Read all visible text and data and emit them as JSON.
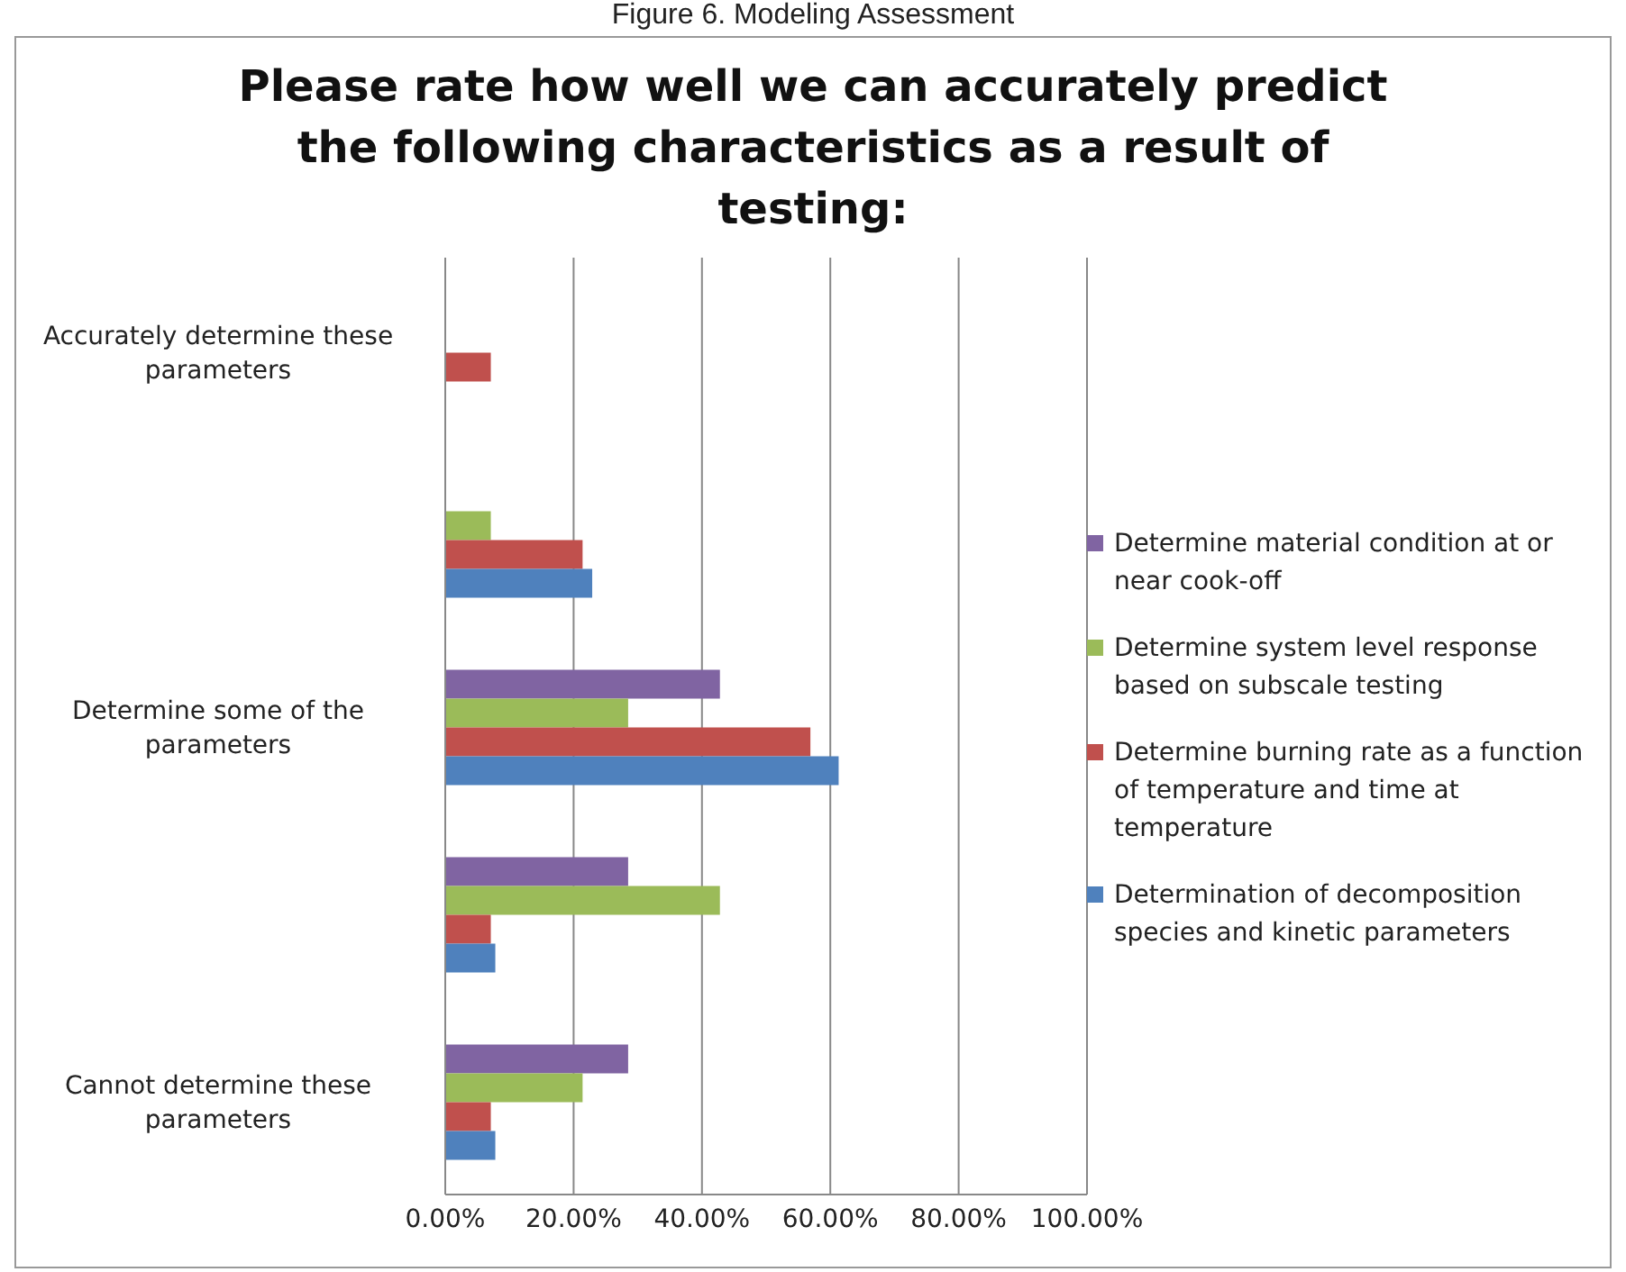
{
  "chart_data": {
    "type": "bar",
    "orientation": "horizontal",
    "title": "Please rate how well we can accurately predict the following characteristics as a result of testing:",
    "annotations": [
      "Figure 6.  Modeling Assessment"
    ],
    "categories": [
      "Accurately determine these parameters",
      null,
      "Determine some of the parameters",
      null,
      "Cannot determine these parameters"
    ],
    "series": [
      {
        "name": "Determine material condition at or near cook-off",
        "color": "#8064a2",
        "values": [
          0,
          0,
          42.8,
          28.5,
          28.5
        ]
      },
      {
        "name": "Determine system level response based on subscale testing",
        "color": "#9bbb59",
        "values": [
          0,
          7.1,
          28.5,
          42.8,
          21.4
        ]
      },
      {
        "name": "Determine burning rate as a function of temperature and time at temperature",
        "color": "#c0504d",
        "values": [
          7.1,
          21.4,
          56.9,
          7.1,
          7.1
        ]
      },
      {
        "name": "Determination of decomposition species and kinetic parameters",
        "color": "#4f81bd",
        "values": [
          0,
          22.9,
          61.3,
          7.8,
          7.8
        ]
      }
    ],
    "xlim": [
      0,
      100
    ],
    "xticks": [
      {
        "value": 0,
        "label": "0.00%"
      },
      {
        "value": 20,
        "label": "20.00%"
      },
      {
        "value": 40,
        "label": "40.00%"
      },
      {
        "value": 60,
        "label": "60.00%"
      },
      {
        "value": 80,
        "label": "80.00%"
      },
      {
        "value": 100,
        "label": "100.00%"
      }
    ],
    "grid": "x",
    "legend": "right"
  }
}
